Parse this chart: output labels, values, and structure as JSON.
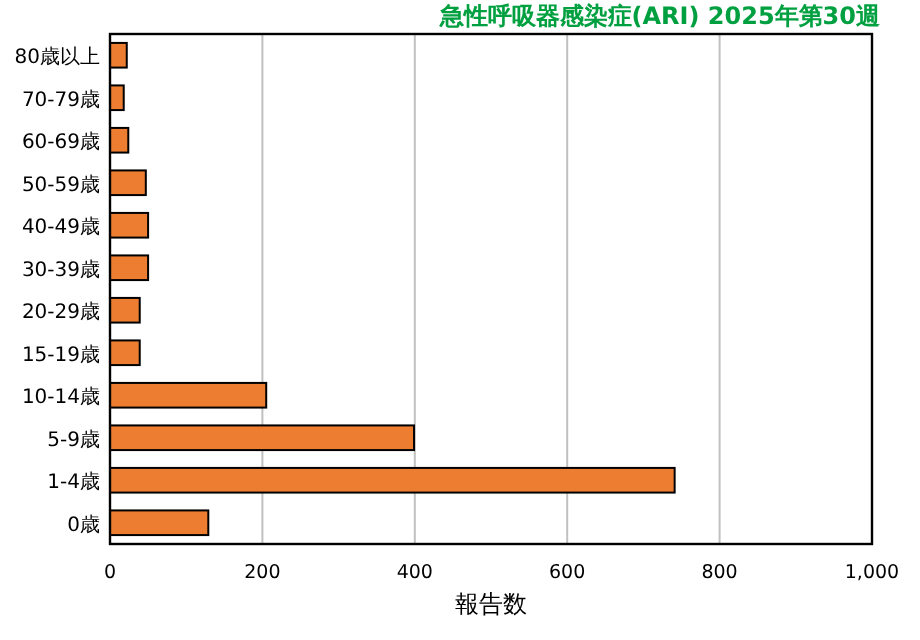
{
  "chart_data": {
    "type": "bar",
    "orientation": "horizontal",
    "title": "急性呼吸器感染症(ARI) 2025年第30週",
    "xlabel": "報告数",
    "categories": [
      "80歳以上",
      "70-79歳",
      "60-69歳",
      "50-59歳",
      "40-49歳",
      "30-39歳",
      "20-29歳",
      "15-19歳",
      "10-14歳",
      "5-9歳",
      "1-4歳",
      "0歳"
    ],
    "values": [
      22,
      18,
      24,
      47,
      50,
      50,
      39,
      39,
      205,
      399,
      741,
      129
    ],
    "color": "#ed7d31",
    "xlim": [
      0,
      1000
    ],
    "xticks": [
      0,
      200,
      400,
      600,
      800,
      {
        "value": 1000,
        "label": "1,000"
      }
    ],
    "grid": "x"
  }
}
